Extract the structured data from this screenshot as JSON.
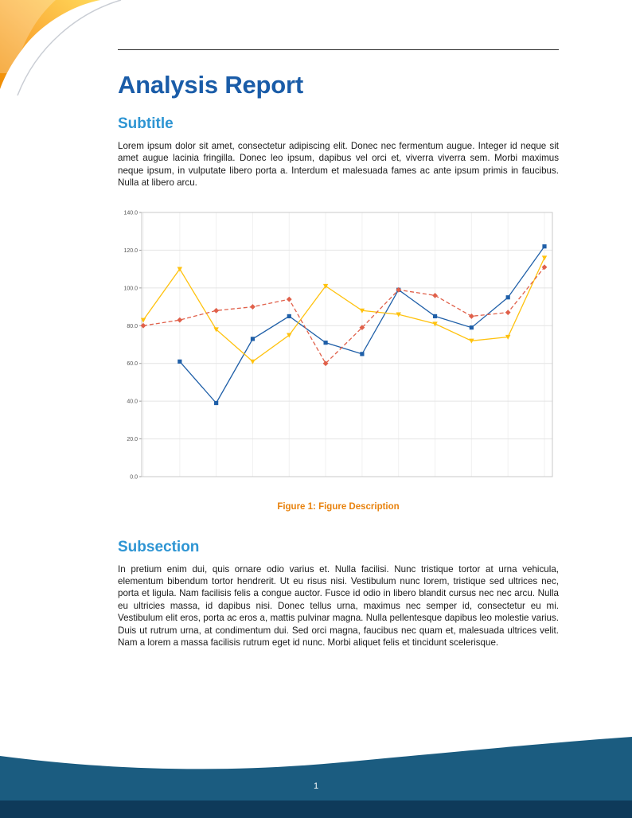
{
  "document": {
    "title": "Analysis Report",
    "page_number": "1"
  },
  "sections": [
    {
      "heading": "Subtitle",
      "body": "Lorem ipsum dolor sit amet, consectetur adipiscing elit. Donec nec fermentum augue. Integer id neque sit amet augue lacinia fringilla. Donec leo ipsum, dapibus vel orci et, viverra viverra sem. Morbi maximus neque ipsum, in vulputate libero porta a. Interdum et malesuada fames ac ante ipsum primis in faucibus. Nulla at libero arcu."
    },
    {
      "heading": "Subsection",
      "body": "In pretium enim dui, quis ornare odio varius et. Nulla facilisi. Nunc tristique tortor at urna vehicula, elementum bibendum tortor hendrerit. Ut eu risus nisi. Vestibulum nunc lorem, tristique sed ultrices nec, porta et ligula. Nam facilisis felis a congue auctor. Fusce id odio in libero blandit cursus nec nec arcu. Nulla eu ultricies massa, id dapibus nisi. Donec tellus urna, maximus nec semper id, consectetur eu mi. Vestibulum elit eros, porta ac eros a, mattis pulvinar magna. Nulla pellentesque dapibus leo molestie varius. Duis ut rutrum urna, at condimentum dui. Sed orci magna, faucibus nec quam et, malesuada ultrices velit. Nam a lorem a massa facilisis rutrum eget id nunc. Morbi aliquet felis et tincidunt scelerisque."
    }
  ],
  "figure": {
    "caption_label": "Figure 1:",
    "caption_text": "Figure Description"
  },
  "colors": {
    "title_blue": "#1a5ca8",
    "heading_blue": "#2e95d3",
    "caption_orange": "#e8820d",
    "footer_wave_blue": "#1b5c80",
    "footer_band_dark": "#0e3a5a",
    "corner_yellow": "#ffd95a",
    "corner_orange": "#f08c00"
  },
  "chart_data": {
    "type": "line",
    "x": [
      1,
      2,
      3,
      4,
      5,
      6,
      7,
      8,
      9,
      10,
      11,
      12
    ],
    "xlabel": "",
    "ylabel": "",
    "title": "",
    "ylim": [
      0,
      140
    ],
    "ytick_interval": 20,
    "ytick_labels": [
      "0.0",
      "20.0",
      "40.0",
      "60.0",
      "80.0",
      "100.0",
      "120.0",
      "140.0"
    ],
    "grid": true,
    "legend_position": "none",
    "series": [
      {
        "name": "series-blue",
        "color": "#1f5fa8",
        "line_style": "solid",
        "marker": "square",
        "values": [
          null,
          61,
          39,
          73,
          85,
          71,
          65,
          99,
          85,
          79,
          95,
          122
        ]
      },
      {
        "name": "series-yellow",
        "color": "#ffc20e",
        "line_style": "solid",
        "marker": "triangle-down",
        "values": [
          83,
          110,
          78,
          61,
          75,
          101,
          88,
          86,
          81,
          72,
          74,
          116
        ]
      },
      {
        "name": "series-red",
        "color": "#e0604a",
        "line_style": "dashed",
        "marker": "diamond",
        "values": [
          80,
          83,
          88,
          90,
          94,
          60,
          79,
          99,
          96,
          85,
          87,
          111
        ]
      }
    ]
  }
}
